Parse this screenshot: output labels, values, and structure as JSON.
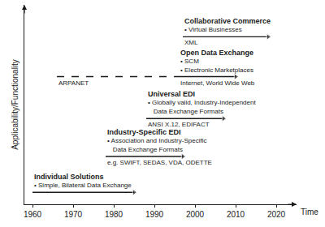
{
  "chart_data": {
    "type": "line",
    "x_label": "Time",
    "y_label": "Applicability/Functionality",
    "xlim": [
      1958,
      2025
    ],
    "xticks": [
      1960,
      1970,
      1980,
      1990,
      2000,
      2010,
      2020
    ],
    "ylim": [
      0,
      100
    ],
    "tick_labels": "x",
    "grid": false,
    "marker": "arrow",
    "color": "#1a1a1a",
    "series": [
      {
        "name": "Individual Solutions",
        "bullets": [
          [
            "• Simple, Bilateral Data Exchange"
          ]
        ],
        "segments": [
          {
            "x": [
              1960,
              1985
            ],
            "values": [
              6,
              6
            ],
            "line_style": "solid"
          }
        ]
      },
      {
        "name": "Industry-Specific EDI",
        "bullets": [
          [
            "• Association and Industry-Specific",
            "Data Exchange Formats"
          ]
        ],
        "segments": [
          {
            "x": [
              1978,
              1997
            ],
            "values": [
              24,
              24
            ],
            "line_style": "solid",
            "label": "e.g. SWIFT, SEDAS, VDA, ODETTE"
          }
        ]
      },
      {
        "name": "Universal EDI",
        "bullets": [
          [
            "• Globally valid, Industry-Independent",
            "Data Exchange Formats"
          ]
        ],
        "segments": [
          {
            "x": [
              1988,
              2007
            ],
            "values": [
              43,
              43
            ],
            "line_style": "solid",
            "label": "ANSI X.12, EDIFACT"
          }
        ]
      },
      {
        "name": "Open Data Exchange",
        "bullets": [
          [
            "• SCM"
          ],
          [
            "• Electronic Marketplaces"
          ]
        ],
        "segments": [
          {
            "x": [
              1966,
              1996
            ],
            "values": [
              64,
              64
            ],
            "line_style": "dashed",
            "label": "ARPANET"
          },
          {
            "x": [
              1996,
              2010
            ],
            "values": [
              64,
              64
            ],
            "line_style": "solid",
            "label": "Internet, World Wide Web"
          }
        ]
      },
      {
        "name": "Collaborative Commerce",
        "bullets": [
          [
            "• Virtual Businesses"
          ]
        ],
        "segments": [
          {
            "x": [
              1997,
              2018
            ],
            "values": [
              84,
              84
            ],
            "line_style": "solid",
            "label": "XML"
          }
        ]
      }
    ]
  }
}
